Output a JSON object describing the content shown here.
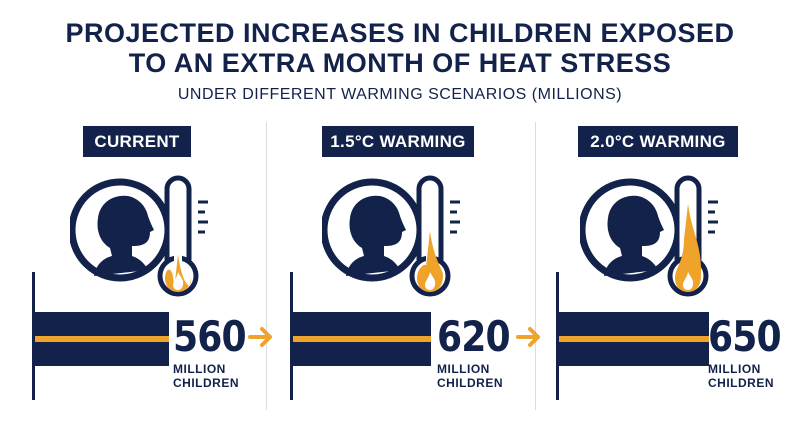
{
  "title": {
    "line1": "PROJECTED INCREASES IN CHILDREN EXPOSED",
    "line2": "TO AN EXTRA MONTH OF HEAT STRESS"
  },
  "subtitle": "UNDER DIFFERENT WARMING SCENARIOS (MILLIONS)",
  "colors": {
    "navy": "#12224a",
    "orange": "#f0a32a",
    "divider": "#d9dce3"
  },
  "icons": [
    "child-head-icon",
    "thermometer-icon",
    "flame-icon",
    "arrow-right-icon"
  ],
  "chart_data": {
    "type": "bar",
    "orientation": "horizontal",
    "title": "PROJECTED INCREASES IN CHILDREN EXPOSED TO AN EXTRA MONTH OF HEAT STRESS",
    "subtitle": "UNDER DIFFERENT WARMING SCENARIOS (MILLIONS)",
    "categories": [
      "CURRENT",
      "1.5°C WARMING",
      "2.0°C WARMING"
    ],
    "values": [
      560,
      620,
      650
    ],
    "value_labels": [
      "560",
      "620",
      "650"
    ],
    "unit_line1": "MILLION",
    "unit_line2": "CHILDREN",
    "flame_level": [
      0.2,
      0.5,
      0.85
    ]
  }
}
